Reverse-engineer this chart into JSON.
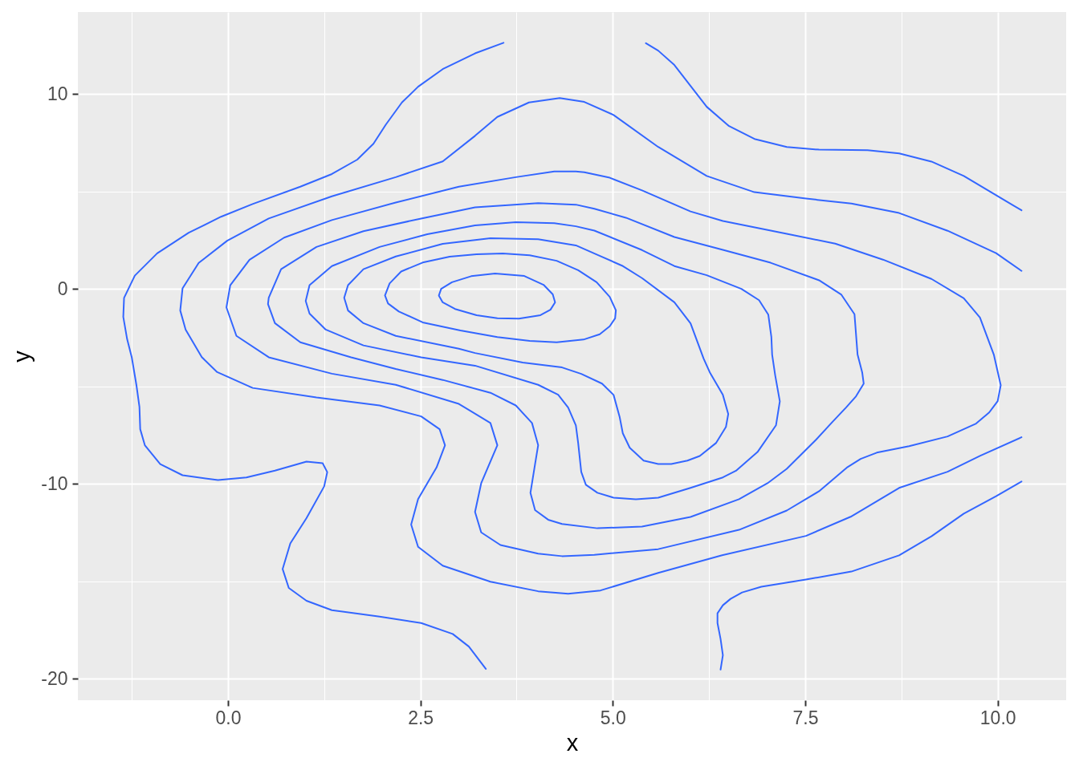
{
  "chart_data": {
    "type": "line",
    "xlabel": "x",
    "ylabel": "y",
    "xlim": [
      -1.95,
      10.89
    ],
    "ylim": [
      -21.1,
      14.2
    ],
    "xticks": [
      {
        "value": 0,
        "label": "0.0"
      },
      2.5,
      {
        "value": 5,
        "label": "5.0"
      },
      7.5,
      {
        "value": 10,
        "label": "10.0"
      }
    ],
    "yticks": [
      -20,
      -10,
      0,
      10
    ],
    "grid": true,
    "line_style": "solid",
    "series": [
      {
        "color": "#3366ff",
        "x": [
          2.74,
          2.77,
          2.91,
          3.16,
          3.47,
          3.85,
          4.1,
          4.22,
          4.25,
          4.19,
          4.06,
          3.78,
          3.5,
          3.23,
          2.95,
          2.79,
          2.74,
          2.77
        ],
        "values": [
          -0.34,
          0,
          0.34,
          0.65,
          0.79,
          0.66,
          0.21,
          -0.28,
          -0.69,
          -1.07,
          -1.35,
          -1.53,
          -1.51,
          -1.35,
          -1.03,
          -0.69,
          -0.34,
          0
        ]
      },
      {
        "color": "#3366ff",
        "x": [
          2.04,
          2.1,
          2.25,
          2.53,
          2.88,
          3.23,
          3.57,
          3.92,
          4.27,
          4.55,
          4.79,
          4.96,
          5.04,
          5.03,
          4.96,
          4.83,
          4.62,
          4.27,
          3.92,
          3.5,
          3.02,
          2.53,
          2.22,
          2.08,
          2.04,
          2.1
        ],
        "values": [
          -0.34,
          0.28,
          0.89,
          1.35,
          1.65,
          1.78,
          1.82,
          1.72,
          1.44,
          0.96,
          0.34,
          -0.41,
          -1.1,
          -1.51,
          -1.92,
          -2.33,
          -2.6,
          -2.74,
          -2.67,
          -2.47,
          -2.13,
          -1.72,
          -1.16,
          -0.75,
          -0.34,
          0.28
        ]
      },
      {
        "color": "#3366ff",
        "x": [
          1.51,
          1.56,
          1.76,
          2.18,
          2.79,
          3.41,
          4.03,
          4.52,
          4.81,
          5.12,
          5.38,
          5.8,
          6.01,
          6.18,
          6.26,
          6.43,
          6.5,
          6.47,
          6.34,
          6.13,
          5.97,
          5.76,
          5.59,
          5.4,
          5.22,
          5.13,
          5.09,
          5.01,
          4.86,
          4.59,
          4.34,
          3.83,
          3.21,
          3.0,
          2.18,
          1.76,
          1.56,
          1.51,
          1.56
        ],
        "values": [
          -0.46,
          0.19,
          1.01,
          1.66,
          2.31,
          2.6,
          2.55,
          2.23,
          1.73,
          1.19,
          0.55,
          -0.69,
          -1.77,
          -3.58,
          -4.28,
          -5.44,
          -6.42,
          -7.08,
          -7.91,
          -8.57,
          -8.81,
          -8.98,
          -8.98,
          -8.81,
          -8.15,
          -7.41,
          -6.59,
          -5.44,
          -4.86,
          -4.36,
          -4.03,
          -3.78,
          -3.29,
          -3.07,
          -2.41,
          -1.76,
          -1.11,
          -0.46,
          0.19
        ]
      },
      {
        "color": "#3366ff",
        "x": [
          1.01,
          1.06,
          1.35,
          1.97,
          2.59,
          3.21,
          3.74,
          4.24,
          4.52,
          4.76,
          5.38,
          5.8,
          6.22,
          6.67,
          6.9,
          7.02,
          7.06,
          7.07,
          7.11,
          7.17,
          7.12,
          6.88,
          6.6,
          6.43,
          6.01,
          5.59,
          5.3,
          5.01,
          4.8,
          4.65,
          4.59,
          4.55,
          4.52,
          4.42,
          4.29,
          4.03,
          3.21,
          2.51,
          1.76,
          1.27,
          1.06,
          1.01,
          1.06
        ],
        "values": [
          -0.62,
          0.19,
          1.17,
          2.15,
          2.8,
          3.26,
          3.42,
          3.37,
          3.21,
          2.99,
          1.99,
          1.17,
          0.7,
          0,
          -0.58,
          -1.32,
          -2.47,
          -3.37,
          -4.44,
          -5.77,
          -7.0,
          -8.37,
          -9.33,
          -9.67,
          -10.21,
          -10.71,
          -10.79,
          -10.71,
          -10.46,
          -10.05,
          -9.39,
          -7.91,
          -7.0,
          -6.09,
          -5.43,
          -4.92,
          -3.94,
          -3.51,
          -2.9,
          -2.09,
          -1.27,
          -0.62,
          0.19
        ]
      },
      {
        "color": "#3366ff",
        "x": [
          0.52,
          0.53,
          0.69,
          1.15,
          1.76,
          2.51,
          3.21,
          4.03,
          4.52,
          4.76,
          5.17,
          5.8,
          6.43,
          7.05,
          7.68,
          7.97,
          8.14,
          8.18,
          8.24,
          8.26,
          8.16,
          8.03,
          7.85,
          7.64,
          7.26,
          7.01,
          6.64,
          6.01,
          5.38,
          4.8,
          4.34,
          4.16,
          3.99,
          3.93,
          3.99,
          4.03,
          3.95,
          3.74,
          3.41,
          2.79,
          2.18,
          1.6,
          0.94,
          0.61,
          0.52,
          0.53
        ],
        "values": [
          -0.78,
          -0.45,
          1.01,
          2.15,
          2.96,
          3.61,
          4.18,
          4.4,
          4.32,
          4.11,
          3.65,
          2.66,
          2.0,
          1.34,
          0.44,
          -0.3,
          -1.3,
          -3.37,
          -4.28,
          -4.86,
          -5.51,
          -6.09,
          -6.84,
          -7.74,
          -9.23,
          -9.97,
          -10.79,
          -11.7,
          -12.19,
          -12.28,
          -12.06,
          -11.84,
          -11.35,
          -10.46,
          -8.99,
          -8.02,
          -6.88,
          -5.98,
          -5.33,
          -4.67,
          -4.11,
          -3.51,
          -2.74,
          -1.76,
          -0.78,
          -0.45
        ]
      },
      {
        "color": "#3366ff",
        "x": [
          -0.02,
          0.03,
          0.28,
          0.73,
          1.35,
          2.18,
          3.0,
          3.74,
          4.24,
          4.52,
          4.63,
          4.96,
          5.38,
          6.01,
          6.43,
          7.26,
          7.89,
          8.51,
          9.14,
          9.56,
          9.77,
          9.95,
          10.04,
          10.0,
          9.89,
          9.72,
          9.35,
          8.85,
          8.43,
          8.22,
          8.05,
          7.68,
          7.26,
          6.64,
          5.59,
          4.76,
          4.34,
          4.03,
          3.54,
          3.29,
          3.21,
          3.29,
          3.5,
          3.41,
          3.0,
          2.18,
          1.35,
          0.53,
          0.11,
          -0.02,
          0.03
        ],
        "values": [
          -0.95,
          0.19,
          1.49,
          2.63,
          3.53,
          4.43,
          5.24,
          5.73,
          6.02,
          6.02,
          5.98,
          5.7,
          5.05,
          3.97,
          3.48,
          2.82,
          2.32,
          1.5,
          0.51,
          -0.48,
          -1.47,
          -3.37,
          -4.94,
          -5.76,
          -6.34,
          -6.91,
          -7.57,
          -8.07,
          -8.4,
          -8.72,
          -9.14,
          -10.38,
          -11.37,
          -12.36,
          -13.35,
          -13.64,
          -13.71,
          -13.58,
          -13.14,
          -12.49,
          -11.44,
          -9.97,
          -8.02,
          -6.88,
          -5.9,
          -4.92,
          -4.35,
          -3.51,
          -2.41,
          -0.95,
          0.19
        ]
      },
      {
        "color": "#3366ff",
        "x": [
          10.31,
          9.98,
          9.35,
          8.72,
          8.1,
          7.51,
          6.84,
          6.22,
          5.59,
          5.01,
          4.63,
          4.31,
          3.91,
          3.5,
          3.21,
          2.79,
          2.18,
          1.35,
          0.53,
          -0.01,
          -0.38,
          -0.59,
          -0.62,
          -0.55,
          -0.34,
          -0.14,
          0.32,
          1.15,
          1.97,
          2.51,
          2.75,
          2.82,
          2.71,
          2.47,
          2.38,
          2.47,
          2.79,
          3.41,
          4.03,
          4.42,
          4.84,
          5.59,
          6.42,
          7.51,
          8.09,
          8.72,
          9.35,
          9.77,
          10.31
        ],
        "values": [
          0.92,
          1.83,
          2.98,
          3.89,
          4.38,
          4.63,
          4.96,
          5.79,
          7.28,
          8.92,
          9.59,
          9.79,
          9.56,
          8.82,
          7.85,
          6.54,
          5.73,
          4.75,
          3.61,
          2.47,
          1.33,
          0.03,
          -1.11,
          -2.09,
          -3.5,
          -4.27,
          -5.08,
          -5.57,
          -5.98,
          -6.54,
          -7.2,
          -8.02,
          -9.16,
          -10.78,
          -12.09,
          -13.23,
          -14.2,
          -15.02,
          -15.51,
          -15.64,
          -15.47,
          -14.57,
          -13.66,
          -12.67,
          -11.69,
          -10.21,
          -9.38,
          -8.57,
          -7.61
        ]
      },
      {
        "color": "#3366ff",
        "x": [
          3.58,
          3.21,
          2.79,
          2.47,
          2.26,
          2.05,
          1.89,
          1.68,
          1.35,
          0.94,
          0.32,
          -0.09,
          -0.51,
          -0.92,
          -1.21,
          -1.35,
          -1.36,
          -1.31,
          -1.25,
          -1.19,
          -1.15,
          -1.14,
          -1.08,
          -0.88,
          -0.59,
          -0.13,
          0.24,
          0.61,
          1.02,
          1.23,
          1.29,
          1.25,
          1.02,
          0.81,
          0.71,
          0.79,
          1.02,
          1.35,
          1.97,
          2.51,
          2.92,
          3.13,
          3.35
        ],
        "values": [
          12.62,
          12.08,
          11.27,
          10.37,
          9.56,
          8.42,
          7.44,
          6.63,
          5.89,
          5.24,
          4.35,
          3.7,
          2.88,
          1.82,
          0.68,
          -0.46,
          -1.44,
          -2.58,
          -3.51,
          -4.92,
          -6.06,
          -7.2,
          -8.02,
          -8.99,
          -9.56,
          -9.81,
          -9.67,
          -9.32,
          -8.86,
          -8.94,
          -9.4,
          -10.13,
          -11.76,
          -13.06,
          -14.37,
          -15.34,
          -16.0,
          -16.48,
          -16.81,
          -17.14,
          -17.7,
          -18.35,
          -19.49
        ]
      },
      {
        "color": "#3366ff",
        "x": [
          5.43,
          5.59,
          5.8,
          6.01,
          6.22,
          6.51,
          6.84,
          7.26,
          7.68,
          8.31,
          8.72,
          9.14,
          9.56,
          9.98,
          10.31
        ],
        "values": [
          12.6,
          12.22,
          11.48,
          10.41,
          9.34,
          8.35,
          7.69,
          7.28,
          7.14,
          7.11,
          6.95,
          6.53,
          5.79,
          4.8,
          4.03
        ]
      },
      {
        "color": "#3366ff",
        "x": [
          6.4,
          6.43,
          6.4,
          6.36,
          6.36,
          6.43,
          6.53,
          6.68,
          6.93,
          7.51,
          8.1,
          8.72,
          9.14,
          9.56,
          9.98,
          10.31
        ],
        "values": [
          -19.53,
          -18.79,
          -17.96,
          -17.14,
          -16.64,
          -16.23,
          -15.9,
          -15.57,
          -15.28,
          -14.91,
          -14.5,
          -13.67,
          -12.69,
          -11.53,
          -10.63,
          -9.88
        ]
      }
    ]
  }
}
